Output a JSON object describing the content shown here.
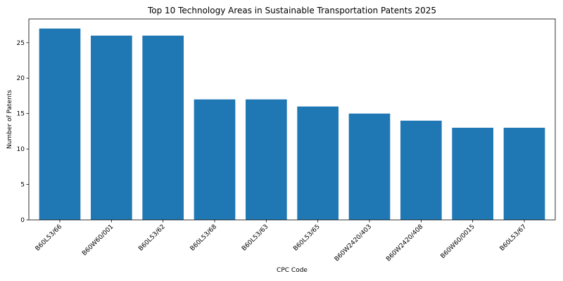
{
  "chart_data": {
    "type": "bar",
    "title": "Top 10 Technology Areas in Sustainable Transportation Patents 2025",
    "xlabel": "CPC Code",
    "ylabel": "Number of Patents",
    "categories": [
      "B60L53/66",
      "B60W60/001",
      "B60L53/62",
      "B60L53/68",
      "B60L53/63",
      "B60L53/65",
      "B60W2420/403",
      "B60W2420/408",
      "B60W60/0015",
      "B60L53/67"
    ],
    "values": [
      27,
      26,
      26,
      17,
      17,
      16,
      15,
      14,
      13,
      13
    ],
    "ylim": [
      0,
      28.35
    ],
    "yticks": [
      0,
      5,
      10,
      15,
      20,
      25
    ],
    "grid": false,
    "legend": "none",
    "bar_color": "#1f77b4"
  }
}
